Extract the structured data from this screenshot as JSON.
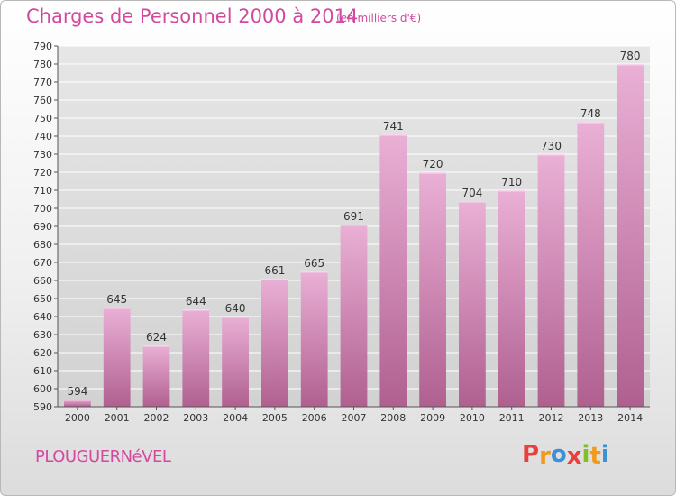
{
  "header": {
    "title": "Charges de Personnel 2000 à 2014",
    "subtitle": "(en milliers d'€)"
  },
  "footer": {
    "commune": "PLOUGUERNéVEL",
    "logo_letters": [
      "P",
      "r",
      "o",
      "x",
      "i",
      "t",
      "i"
    ],
    "logo_colors": [
      "#e8413c",
      "#f29a1d",
      "#3d8fd6",
      "#e8413c",
      "#7fbf2a",
      "#f29a1d",
      "#3d8fd6"
    ]
  },
  "colors": {
    "bar_top": "#eab0d6",
    "bar_bottom": "#b0608f",
    "grid": "#ffffff",
    "accent": "#d24aa0"
  },
  "chart_data": {
    "type": "bar",
    "categories": [
      "2000",
      "2001",
      "2002",
      "2003",
      "2004",
      "2005",
      "2006",
      "2007",
      "2008",
      "2009",
      "2010",
      "2011",
      "2012",
      "2013",
      "2014"
    ],
    "values": [
      594,
      645,
      624,
      644,
      640,
      661,
      665,
      691,
      741,
      720,
      704,
      710,
      730,
      748,
      780
    ],
    "ylim": [
      590,
      790
    ],
    "ytick_step": 10,
    "grid": true
  }
}
